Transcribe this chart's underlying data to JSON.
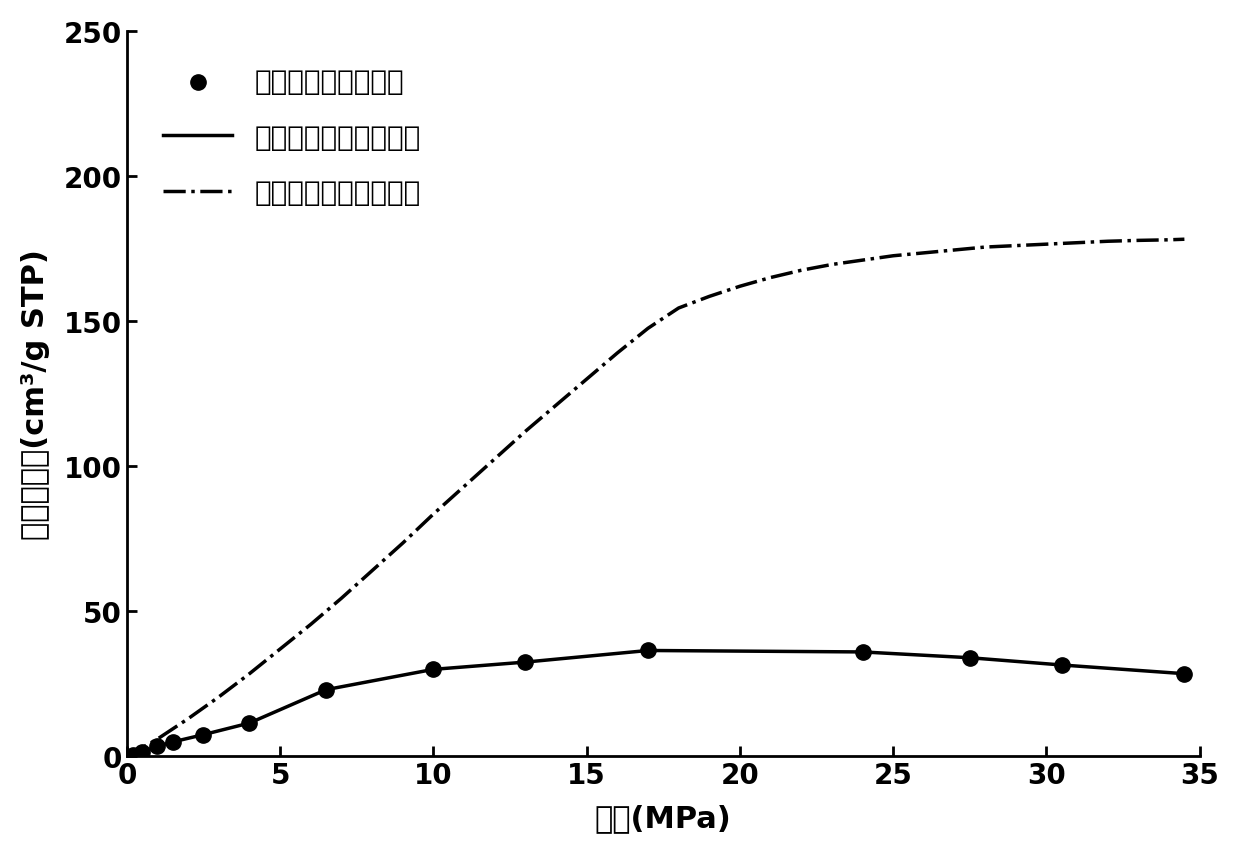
{
  "scatter_x": [
    0.2,
    0.5,
    1.0,
    1.5,
    2.5,
    4.0,
    6.5,
    10.0,
    13.0,
    17.0,
    24.0,
    27.5,
    30.5,
    34.5
  ],
  "scatter_y": [
    0.5,
    1.5,
    3.5,
    5.0,
    7.5,
    11.5,
    23.0,
    30.0,
    32.5,
    36.5,
    36.0,
    34.0,
    31.5,
    28.5
  ],
  "solid_x": [
    0.0,
    0.2,
    0.5,
    1.0,
    1.5,
    2.5,
    4.0,
    6.5,
    10.0,
    13.0,
    17.0,
    24.0,
    27.5,
    30.5,
    34.5
  ],
  "solid_y": [
    0.0,
    0.5,
    1.5,
    3.5,
    5.0,
    7.5,
    11.5,
    23.0,
    30.0,
    32.5,
    36.5,
    36.0,
    34.0,
    31.5,
    28.5
  ],
  "dashdot_x": [
    0.0,
    1.0,
    2.0,
    3.0,
    4.0,
    5.0,
    6.0,
    7.0,
    8.0,
    9.0,
    10.0,
    11.0,
    12.0,
    13.0,
    14.0,
    15.0,
    16.0,
    17.0,
    18.0,
    19.0,
    20.0,
    21.0,
    22.0,
    23.0,
    24.0,
    25.0,
    26.0,
    27.0,
    28.0,
    29.0,
    30.0,
    31.0,
    32.0,
    33.0,
    34.0,
    34.5
  ],
  "dashdot_y": [
    0.0,
    6.0,
    13.0,
    20.5,
    28.5,
    37.0,
    45.5,
    54.5,
    64.0,
    73.5,
    83.5,
    93.0,
    102.5,
    112.0,
    121.0,
    130.0,
    139.0,
    147.5,
    154.5,
    158.5,
    162.0,
    165.0,
    167.5,
    169.5,
    171.0,
    172.5,
    173.5,
    174.5,
    175.5,
    176.0,
    176.5,
    177.0,
    177.5,
    177.8,
    178.0,
    178.2
  ],
  "xlim": [
    0,
    35
  ],
  "ylim": [
    0,
    250
  ],
  "xticks": [
    0,
    5,
    10,
    15,
    20,
    25,
    30,
    35
  ],
  "yticks": [
    0,
    50,
    100,
    150,
    200,
    250
  ],
  "xlabel": "压力(MPa)",
  "ylabel": "过剩吸附量(cm³/g STP)",
  "legend_scatter": "过剩吸附量模拟结果",
  "legend_solid": "本方案计算过剩吸附量",
  "legend_dashdot": "本方案计算绝对吸附量",
  "line_color": "#000000",
  "background_color": "#ffffff",
  "xlabel_fontsize": 22,
  "ylabel_fontsize": 22,
  "tick_fontsize": 20,
  "legend_fontsize": 20,
  "marker_size": 11,
  "line_width": 2.5
}
